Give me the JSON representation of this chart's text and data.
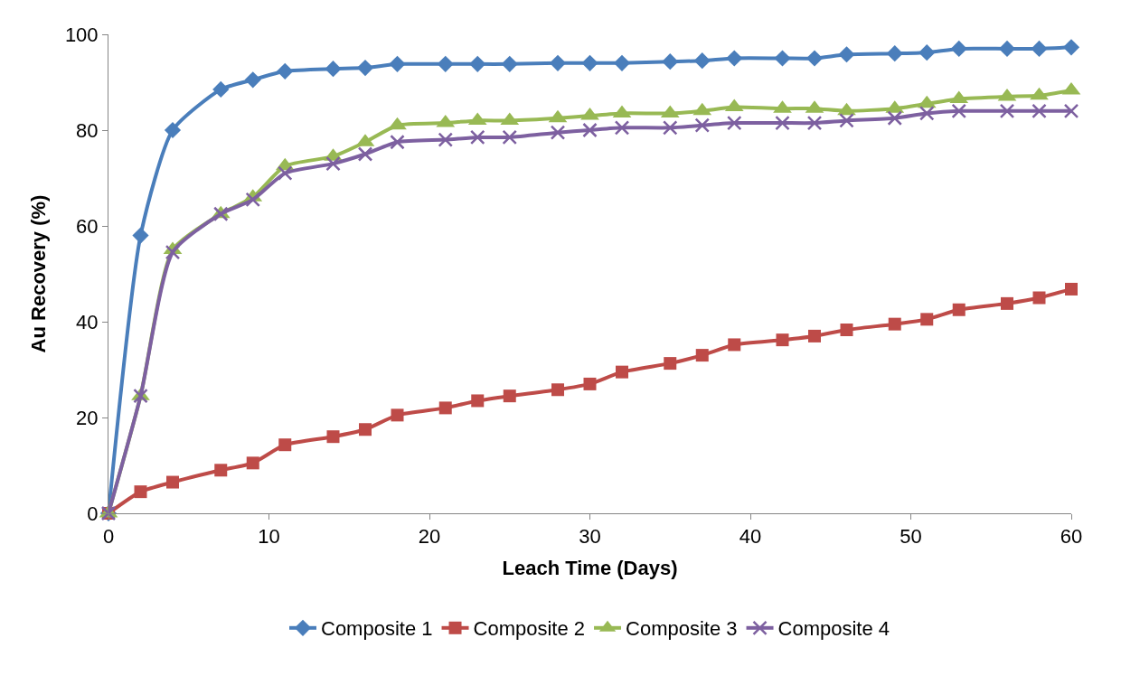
{
  "chart_data": {
    "type": "line",
    "xlabel": "Leach Time (Days)",
    "ylabel": "Au Recovery (%)",
    "x": [
      0,
      2,
      4,
      7,
      9,
      11,
      14,
      16,
      18,
      21,
      23,
      25,
      28,
      30,
      32,
      35,
      37,
      39,
      42,
      44,
      46,
      49,
      51,
      53,
      56,
      58,
      60
    ],
    "series": [
      {
        "name": "Composite 1",
        "color": "#4a7ebb",
        "marker": "diamond",
        "values": [
          0,
          58,
          80,
          88.5,
          90.5,
          92.3,
          92.8,
          93,
          93.8,
          93.8,
          93.8,
          93.8,
          94,
          94,
          94,
          94.3,
          94.5,
          95,
          95,
          95,
          95.8,
          96,
          96.2,
          97,
          97,
          97,
          97.3
        ]
      },
      {
        "name": "Composite 2",
        "color": "#be4b48",
        "marker": "square",
        "values": [
          0,
          4.5,
          6.5,
          9,
          10.5,
          14.3,
          16,
          17.5,
          20.5,
          22,
          23.5,
          24.5,
          25.8,
          27,
          29.5,
          31.3,
          33,
          35.2,
          36.2,
          37,
          38.3,
          39.5,
          40.5,
          42.5,
          43.8,
          45,
          46.8
        ]
      },
      {
        "name": "Composite 3",
        "color": "#98b954",
        "marker": "triangle",
        "values": [
          0,
          24.5,
          55,
          62.5,
          66,
          72.5,
          74.5,
          77.5,
          81,
          81.5,
          82,
          82,
          82.5,
          83,
          83.5,
          83.5,
          84,
          84.8,
          84.5,
          84.5,
          84,
          84.5,
          85.5,
          86.5,
          87,
          87.2,
          88.3
        ]
      },
      {
        "name": "Composite 4",
        "color": "#7d60a0",
        "marker": "cross",
        "values": [
          0,
          24.5,
          54.5,
          62.5,
          65.5,
          71,
          73,
          75,
          77.5,
          78,
          78.5,
          78.5,
          79.5,
          80,
          80.5,
          80.5,
          81,
          81.5,
          81.5,
          81.5,
          82,
          82.5,
          83.5,
          84,
          84,
          84,
          84
        ]
      }
    ],
    "xlim": [
      0,
      60
    ],
    "xticks": [
      0,
      10,
      20,
      30,
      40,
      50,
      60
    ],
    "ylim": [
      0,
      100
    ],
    "yticks": [
      0,
      20,
      40,
      60,
      80,
      100
    ],
    "legend": "bottom",
    "line_style": "solid"
  }
}
